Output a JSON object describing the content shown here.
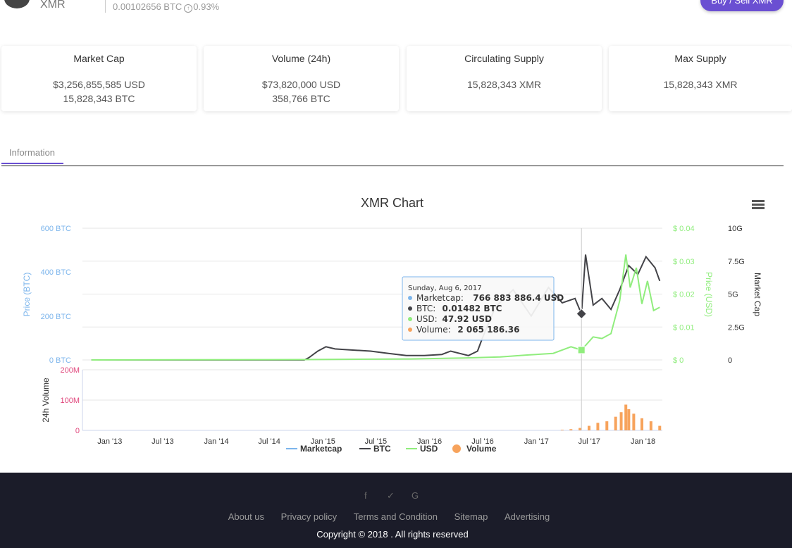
{
  "header": {
    "symbol": "XMR",
    "price_btc": "0.00102656 BTC",
    "change": "0.93%",
    "buy_button": "Buy / Sell XMR"
  },
  "stats": [
    {
      "title": "Market Cap",
      "line1": "$3,256,855,585 USD",
      "line2": "15,828,343 BTC"
    },
    {
      "title": "Volume (24h)",
      "line1": "$73,820,000 USD",
      "line2": "358,766 BTC"
    },
    {
      "title": "Circulating Supply",
      "line1": "15,828,343 XMR",
      "line2": ""
    },
    {
      "title": "Max Supply",
      "line1": "15,828,343 XMR",
      "line2": ""
    }
  ],
  "tabs": {
    "information": "Information"
  },
  "chart_data": {
    "type": "line",
    "title": "XMR Chart",
    "y_left_label": "Price (BTC)",
    "y_left_ticks": [
      "600 BTC",
      "400 BTC",
      "200 BTC",
      "0 BTC"
    ],
    "y_right_usd_label": "Price (USD)",
    "y_right_usd_ticks": [
      "$ 0.04",
      "$ 0.03",
      "$ 0.02",
      "$ 0.01",
      "$ 0"
    ],
    "y_right_cap_label": "Market Cap",
    "y_right_cap_ticks": [
      "10G",
      "7.5G",
      "5G",
      "2.5G",
      "0"
    ],
    "volume_label": "24h Volume",
    "volume_ticks": [
      "200M",
      "100M",
      "0"
    ],
    "x_ticks": [
      "Jan '13",
      "Jul '13",
      "Jan '14",
      "Jul '14",
      "Jan '15",
      "Jul '15",
      "Jan '16",
      "Jul '16",
      "Jan '17",
      "Jul '17",
      "Jan '18"
    ],
    "legend": [
      "Marketcap",
      "BTC",
      "USD",
      "Volume"
    ],
    "colors": {
      "marketcap": "#7cb5ec",
      "btc": "#434348",
      "usd": "#90ed7d",
      "volume": "#f7a35c"
    },
    "series": [
      {
        "name": "BTC",
        "axis": "btc",
        "x": [
          "2013-01-01",
          "2014-12-31",
          "2015-01-15",
          "2015-02-15",
          "2015-03-15",
          "2015-04-15",
          "2015-06-15",
          "2015-08-15",
          "2015-10-15",
          "2015-12-15",
          "2016-02-15",
          "2016-04-15",
          "2016-05-15",
          "2016-07-15",
          "2016-08-15",
          "2016-09-01",
          "2016-10-15",
          "2016-12-15",
          "2017-02-15",
          "2017-04-15",
          "2017-06-01",
          "2017-07-15",
          "2017-08-06",
          "2017-08-20",
          "2017-09-15",
          "2017-10-15",
          "2017-11-15",
          "2017-12-15",
          "2018-01-15",
          "2018-02-15",
          "2018-03-15",
          "2018-04-15",
          "2018-05-01"
        ],
        "values": [
          0,
          0,
          10,
          40,
          60,
          50,
          45,
          40,
          30,
          20,
          20,
          25,
          40,
          20,
          40,
          100,
          240,
          320,
          200,
          330,
          260,
          280,
          210,
          480,
          250,
          280,
          230,
          320,
          430,
          390,
          470,
          420,
          360
        ]
      },
      {
        "name": "USD",
        "axis": "usd",
        "x": [
          "2013-01-01",
          "2015-01-01",
          "2016-01-01",
          "2016-07-01",
          "2016-11-01",
          "2017-02-01",
          "2017-05-01",
          "2017-07-01",
          "2017-08-06",
          "2017-09-15",
          "2017-10-15",
          "2017-11-15",
          "2017-12-15",
          "2018-01-05",
          "2018-01-20",
          "2018-02-10",
          "2018-03-01",
          "2018-03-20",
          "2018-04-10",
          "2018-05-01"
        ],
        "values": [
          0,
          0.0001,
          0.0003,
          0.0006,
          0.0009,
          0.0015,
          0.002,
          0.004,
          0.003,
          0.007,
          0.0065,
          0.008,
          0.018,
          0.032,
          0.022,
          0.028,
          0.017,
          0.024,
          0.015,
          0.016
        ]
      },
      {
        "name": "Volume",
        "axis": "volume",
        "x": [
          "2017-06-01",
          "2017-07-01",
          "2017-08-01",
          "2017-09-01",
          "2017-10-01",
          "2017-11-01",
          "2017-12-01",
          "2017-12-20",
          "2018-01-05",
          "2018-01-15",
          "2018-02-01",
          "2018-03-01",
          "2018-04-01",
          "2018-05-01"
        ],
        "values": [
          2,
          4,
          8,
          15,
          25,
          30,
          45,
          60,
          85,
          70,
          55,
          40,
          30,
          15
        ]
      }
    ],
    "tooltip": {
      "date": "Sunday, Aug 6, 2017",
      "rows": [
        {
          "label": "Marketcap",
          "value": "766 883 886.4 USD"
        },
        {
          "label": "BTC",
          "value": "0.01482 BTC"
        },
        {
          "label": "USD",
          "value": "47.92 USD"
        },
        {
          "label": "Volume",
          "value": "2 065 186.36"
        }
      ]
    }
  },
  "footer": {
    "social": [
      "facebook-icon",
      "twitter-icon",
      "google-icon"
    ],
    "links": [
      "About us",
      "Privacy policy",
      "Terms and Condition",
      "Sitemap",
      "Advertising"
    ],
    "copyright": "Copyright © 2018 . All rights reserved"
  }
}
